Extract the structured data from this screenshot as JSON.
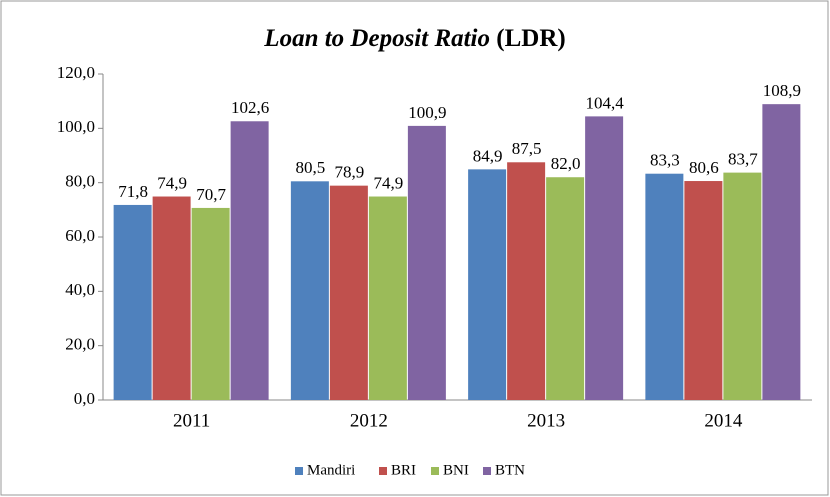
{
  "chart_data": {
    "type": "bar",
    "title": "Loan to Deposit Ratio",
    "title_suffix": "(LDR)",
    "categories": [
      "2011",
      "2012",
      "2013",
      "2014"
    ],
    "series": [
      {
        "name": "Mandiri",
        "color": "#4f81bd",
        "values": [
          71.8,
          80.5,
          84.9,
          83.3
        ],
        "value_labels": [
          "71,8",
          "80,5",
          "84,9",
          "83,3"
        ]
      },
      {
        "name": "BRI",
        "color": "#c0504d",
        "values": [
          74.9,
          78.9,
          87.5,
          80.6
        ],
        "value_labels": [
          "74,9",
          "78,9",
          "87,5",
          "80,6"
        ]
      },
      {
        "name": "BNI",
        "color": "#9bbb59",
        "values": [
          70.7,
          74.9,
          82.0,
          83.7
        ],
        "value_labels": [
          "70,7",
          "74,9",
          "82,0",
          "83,7"
        ]
      },
      {
        "name": "BTN",
        "color": "#8064a2",
        "values": [
          102.6,
          100.9,
          104.4,
          108.9
        ],
        "value_labels": [
          "102,6",
          "100,9",
          "104,4",
          "108,9"
        ]
      }
    ],
    "ylim": [
      0,
      120
    ],
    "yticks": [
      {
        "value": 0,
        "label": "0,0"
      },
      {
        "value": 20,
        "label": "20,0"
      },
      {
        "value": 40,
        "label": "40,0"
      },
      {
        "value": 60,
        "label": "60,0"
      },
      {
        "value": 80,
        "label": "80,0"
      },
      {
        "value": 100,
        "label": "100,0"
      },
      {
        "value": 120,
        "label": "120,0"
      }
    ],
    "grid": false,
    "legend": "bottom"
  }
}
